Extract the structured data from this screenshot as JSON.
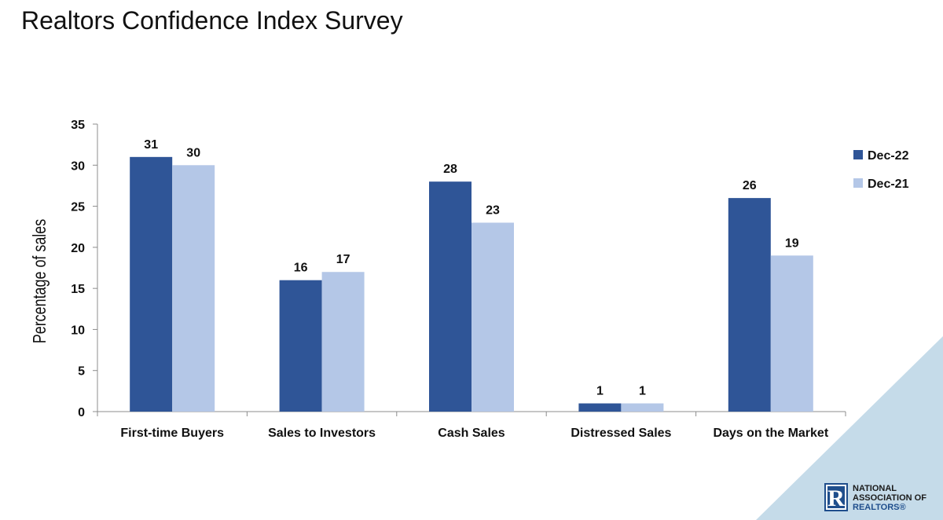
{
  "page": {
    "title": "Realtors Confidence Index Survey"
  },
  "logo": {
    "mark": "R",
    "line1": "NATIONAL",
    "line2": "ASSOCIATION OF",
    "line3": "REALTORS®"
  },
  "chart_data": {
    "type": "bar",
    "title": "",
    "xlabel": "",
    "ylabel": "Percentage of  sales",
    "categories": [
      "First-time Buyers",
      "Sales to Investors",
      "Cash Sales",
      "Distressed Sales",
      "Days on the Market"
    ],
    "series": [
      {
        "name": "Dec-22",
        "color": "#2f5597",
        "values": [
          31,
          16,
          28,
          1,
          26
        ]
      },
      {
        "name": "Dec-21",
        "color": "#b4c7e7",
        "values": [
          30,
          17,
          23,
          1,
          19
        ]
      }
    ],
    "ylim": [
      0,
      35
    ],
    "yticks": [
      0,
      5,
      10,
      15,
      20,
      25,
      30,
      35
    ],
    "grid": false,
    "legend": "right",
    "data_labels": true
  },
  "colors": {
    "accent_triangle": "#c5dbe9",
    "axis": "#8c8c8c"
  }
}
